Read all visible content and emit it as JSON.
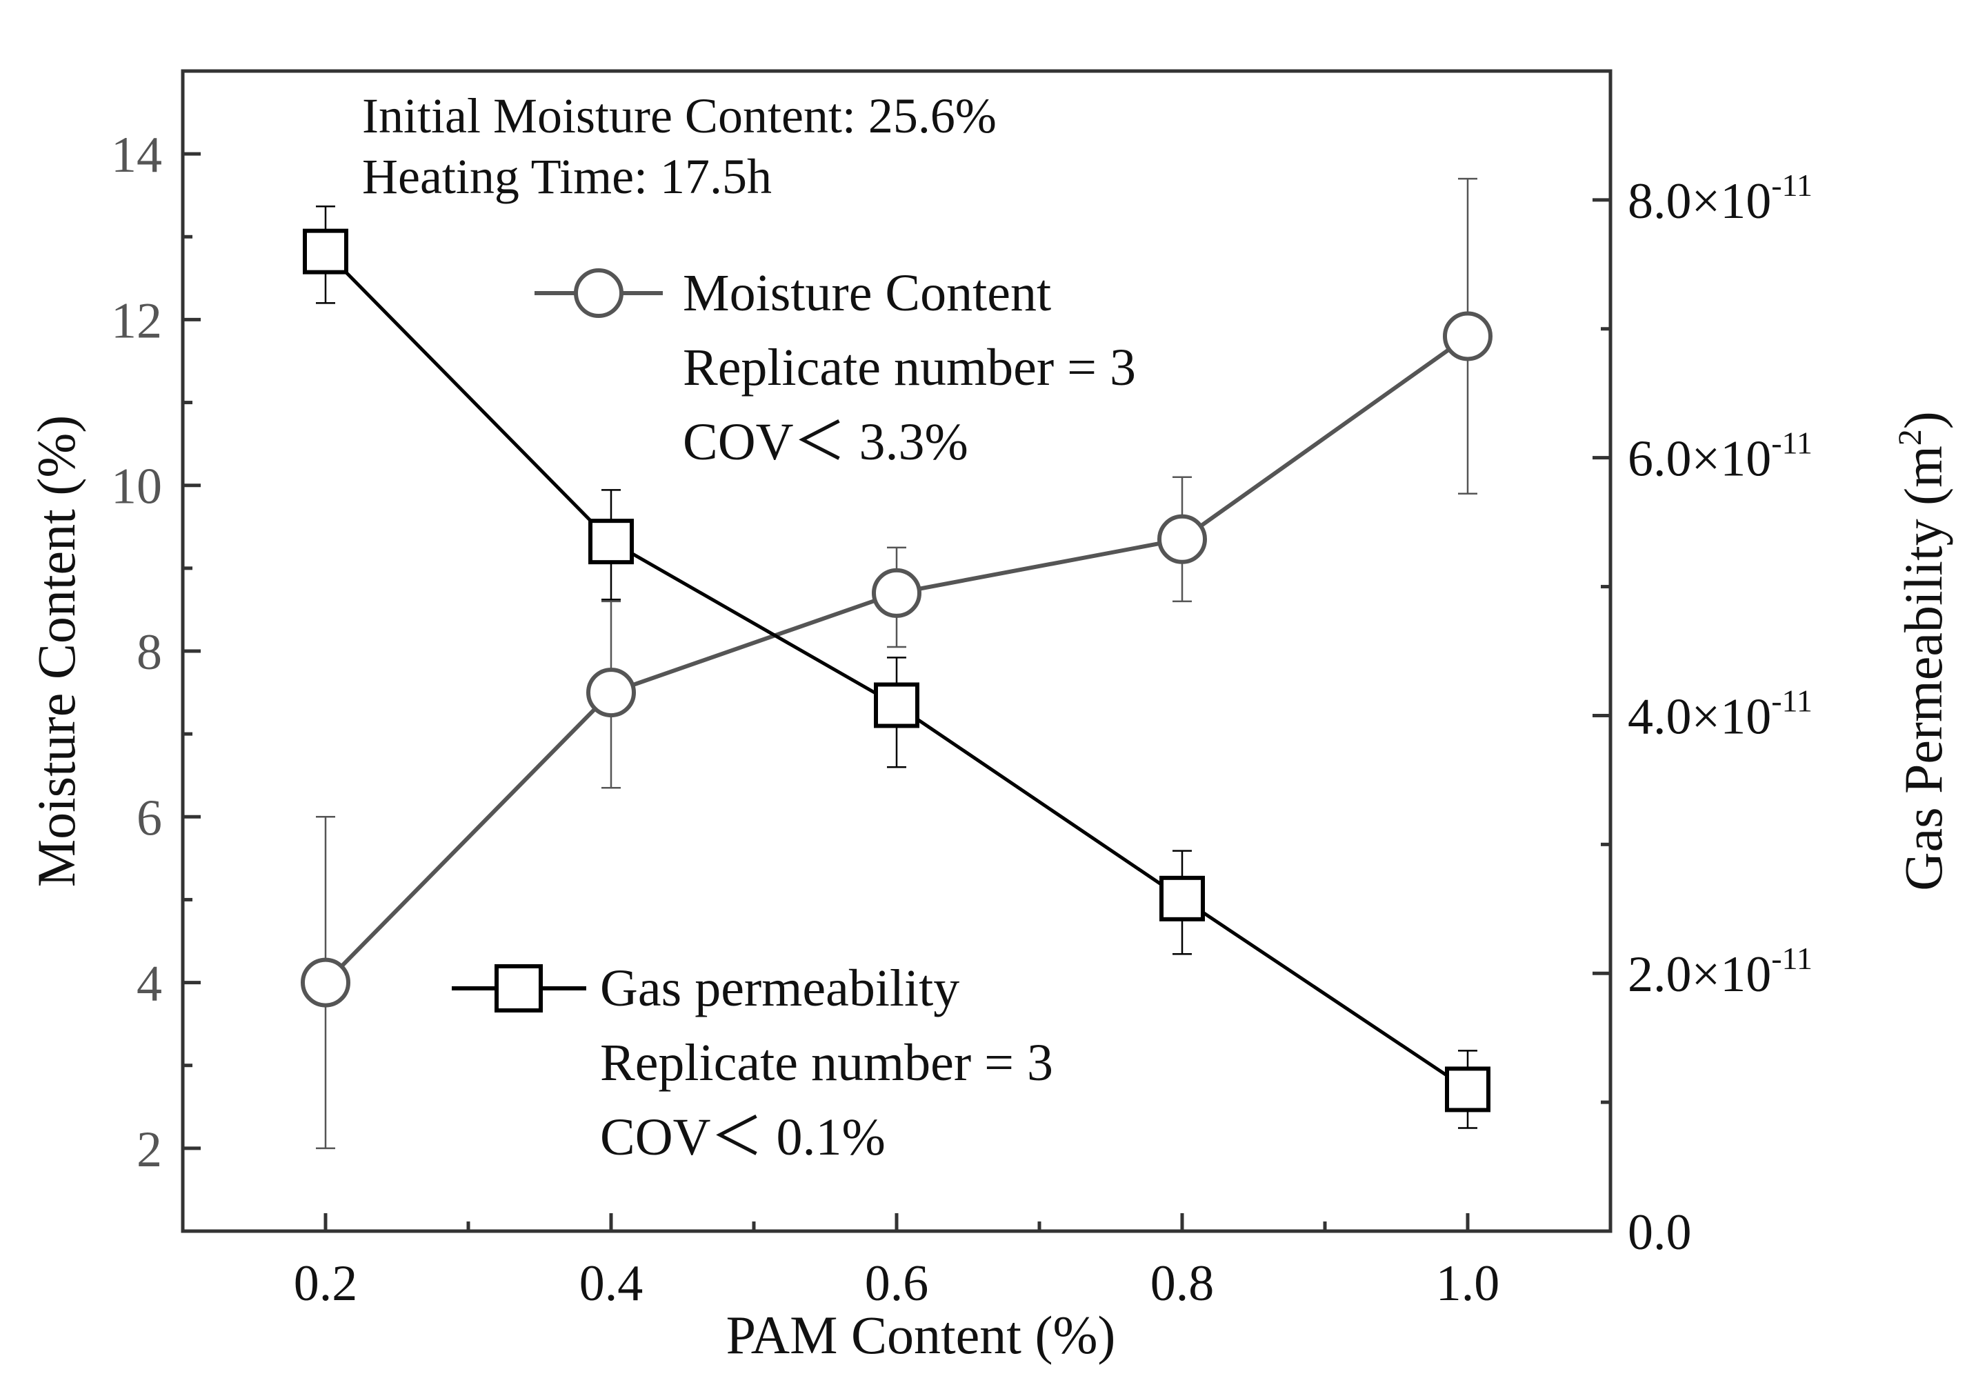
{
  "chart_data": {
    "type": "line",
    "xlabel": "PAM Content (%)",
    "ylabel_left": "Moisture Content (%)",
    "ylabel_right_main": "Gas Permeability (m",
    "ylabel_right_sup": "2",
    "ylabel_right_end": ")",
    "xlim": [
      0.1,
      1.1
    ],
    "ylim_left": [
      1,
      15
    ],
    "ylim_right": [
      0,
      9e-11
    ],
    "x": [
      0.2,
      0.4,
      0.6,
      0.8,
      1.0
    ],
    "x_tick_labels": [
      "0.2",
      "0.4",
      "0.6",
      "0.8",
      "1.0"
    ],
    "y_left_ticks": [
      2,
      4,
      6,
      8,
      10,
      12,
      14
    ],
    "y_left_tick_labels": [
      "2",
      "4",
      "6",
      "8",
      "10",
      "12",
      "14"
    ],
    "y_right_ticks": [
      0,
      2e-11,
      4e-11,
      6e-11,
      8e-11
    ],
    "y_right_tick_labels": [
      {
        "base": "0.0",
        "exp": ""
      },
      {
        "base": "2.0×10",
        "exp": "-11"
      },
      {
        "base": "4.0×10",
        "exp": "-11"
      },
      {
        "base": "6.0×10",
        "exp": "-11"
      },
      {
        "base": "8.0×10",
        "exp": "-11"
      }
    ],
    "annotations": {
      "line1": "Initial Moisture Content: 25.6%",
      "line2": "Heating Time: 17.5h"
    },
    "series": [
      {
        "name": "Moisture Content",
        "axis": "left",
        "marker": "circle",
        "color": "#555555",
        "values": [
          4.0,
          7.5,
          8.7,
          9.35,
          11.8
        ],
        "err_low": [
          2.0,
          6.35,
          8.05,
          8.6,
          9.9
        ],
        "err_high": [
          6.0,
          8.6,
          9.25,
          10.1,
          13.7
        ],
        "legend_lines": [
          "Moisture Content",
          "Replicate number = 3",
          "COV＜ 3.3%"
        ]
      },
      {
        "name": "Gas permeability",
        "axis": "right",
        "marker": "square",
        "color": "#000000",
        "values": [
          7.6e-11,
          5.35e-11,
          4.08e-11,
          2.58e-11,
          1.1e-11
        ],
        "err_low": [
          7.2e-11,
          4.9e-11,
          3.6e-11,
          2.15e-11,
          8e-12
        ],
        "err_high": [
          7.95e-11,
          5.75e-11,
          4.45e-11,
          2.95e-11,
          1.4e-11
        ],
        "legend_lines": [
          "Gas permeability",
          "Replicate number = 3",
          "COV＜ 0.1%"
        ]
      }
    ]
  }
}
